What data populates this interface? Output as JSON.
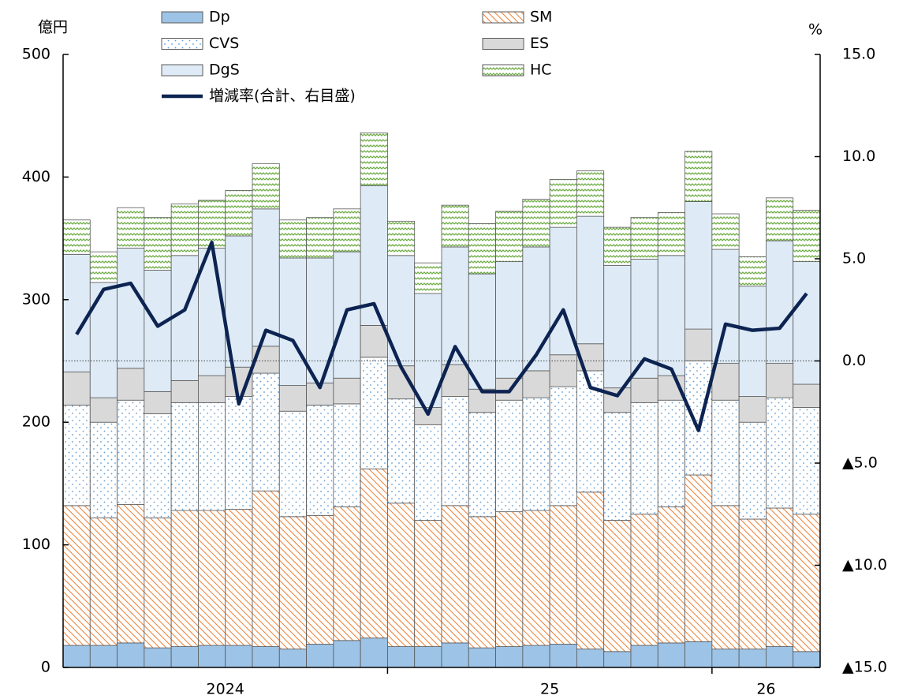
{
  "chart_data": {
    "type": "bar",
    "stacked": true,
    "y_label": "億円",
    "y2_label": "%",
    "categories": [
      "2024",
      null,
      null,
      null,
      null,
      null,
      null,
      null,
      null,
      null,
      null,
      null,
      "25",
      null,
      null,
      null,
      null,
      null,
      null,
      null,
      null,
      null,
      null,
      null,
      "26",
      null,
      null,
      null
    ],
    "series": [
      {
        "name": "Dp",
        "color": "#9dc3e6",
        "values": [
          18,
          18,
          20,
          16,
          17,
          18,
          18,
          17,
          15,
          19,
          22,
          24,
          17,
          17,
          20,
          16,
          17,
          18,
          19,
          15,
          13,
          18,
          20,
          21,
          15,
          15,
          17,
          13
        ]
      },
      {
        "name": "SM",
        "color": "#f4b183",
        "pattern": "hatch",
        "values": [
          114,
          104,
          113,
          106,
          111,
          110,
          111,
          127,
          108,
          105,
          109,
          138,
          117,
          103,
          112,
          107,
          110,
          110,
          113,
          128,
          107,
          107,
          111,
          136,
          117,
          106,
          113,
          112
        ]
      },
      {
        "name": "CVS",
        "color": "#5b9bd5",
        "pattern": "dots",
        "values": [
          82,
          78,
          85,
          85,
          88,
          88,
          92,
          96,
          86,
          90,
          84,
          91,
          85,
          78,
          89,
          85,
          91,
          92,
          97,
          99,
          88,
          91,
          87,
          93,
          86,
          79,
          90,
          87
        ]
      },
      {
        "name": "ES",
        "color": "#d9d9d9",
        "values": [
          27,
          20,
          26,
          18,
          18,
          22,
          24,
          22,
          21,
          18,
          21,
          26,
          27,
          14,
          26,
          19,
          18,
          22,
          26,
          22,
          20,
          20,
          20,
          26,
          30,
          21,
          28,
          19
        ]
      },
      {
        "name": "DgS",
        "color": "#deebf7",
        "values": [
          96,
          94,
          98,
          99,
          102,
          104,
          107,
          112,
          104,
          102,
          103,
          114,
          90,
          93,
          96,
          94,
          95,
          101,
          104,
          104,
          100,
          97,
          98,
          104,
          93,
          90,
          100,
          100
        ]
      },
      {
        "name": "HC",
        "color": "#70ad47",
        "pattern": "wave",
        "values": [
          28,
          25,
          33,
          43,
          42,
          39,
          37,
          37,
          31,
          33,
          35,
          43,
          28,
          25,
          34,
          41,
          41,
          39,
          39,
          37,
          31,
          34,
          35,
          41,
          29,
          24,
          35,
          42
        ]
      },
      {
        "name": "増減率(合計、右目盛)",
        "color": "#0d2452",
        "type": "line",
        "axis": "y2",
        "values": [
          1.3,
          3.5,
          3.8,
          1.7,
          2.5,
          5.8,
          -2.1,
          1.5,
          1.0,
          -1.3,
          2.5,
          2.8,
          -0.3,
          -2.6,
          0.7,
          -1.5,
          -1.5,
          0.3,
          2.5,
          -1.3,
          -1.7,
          0.1,
          -0.4,
          -3.4,
          1.8,
          1.5,
          1.6,
          3.3
        ]
      }
    ],
    "ylim": [
      0,
      500
    ],
    "yticks": [
      0,
      100,
      200,
      300,
      400,
      500
    ],
    "y2lim": [
      -15,
      15
    ],
    "y2ticks": [
      {
        "value": 15,
        "label": "15.0"
      },
      {
        "value": 10,
        "label": "10.0"
      },
      {
        "value": 5,
        "label": "5.0"
      },
      {
        "value": 0,
        "label": "0.0"
      },
      {
        "value": -5,
        "label": "▲5.0"
      },
      {
        "value": -10,
        "label": "▲10.0"
      },
      {
        "value": -15,
        "label": "▲15.0"
      }
    ],
    "y2_zero_line": true,
    "legend": "top"
  }
}
